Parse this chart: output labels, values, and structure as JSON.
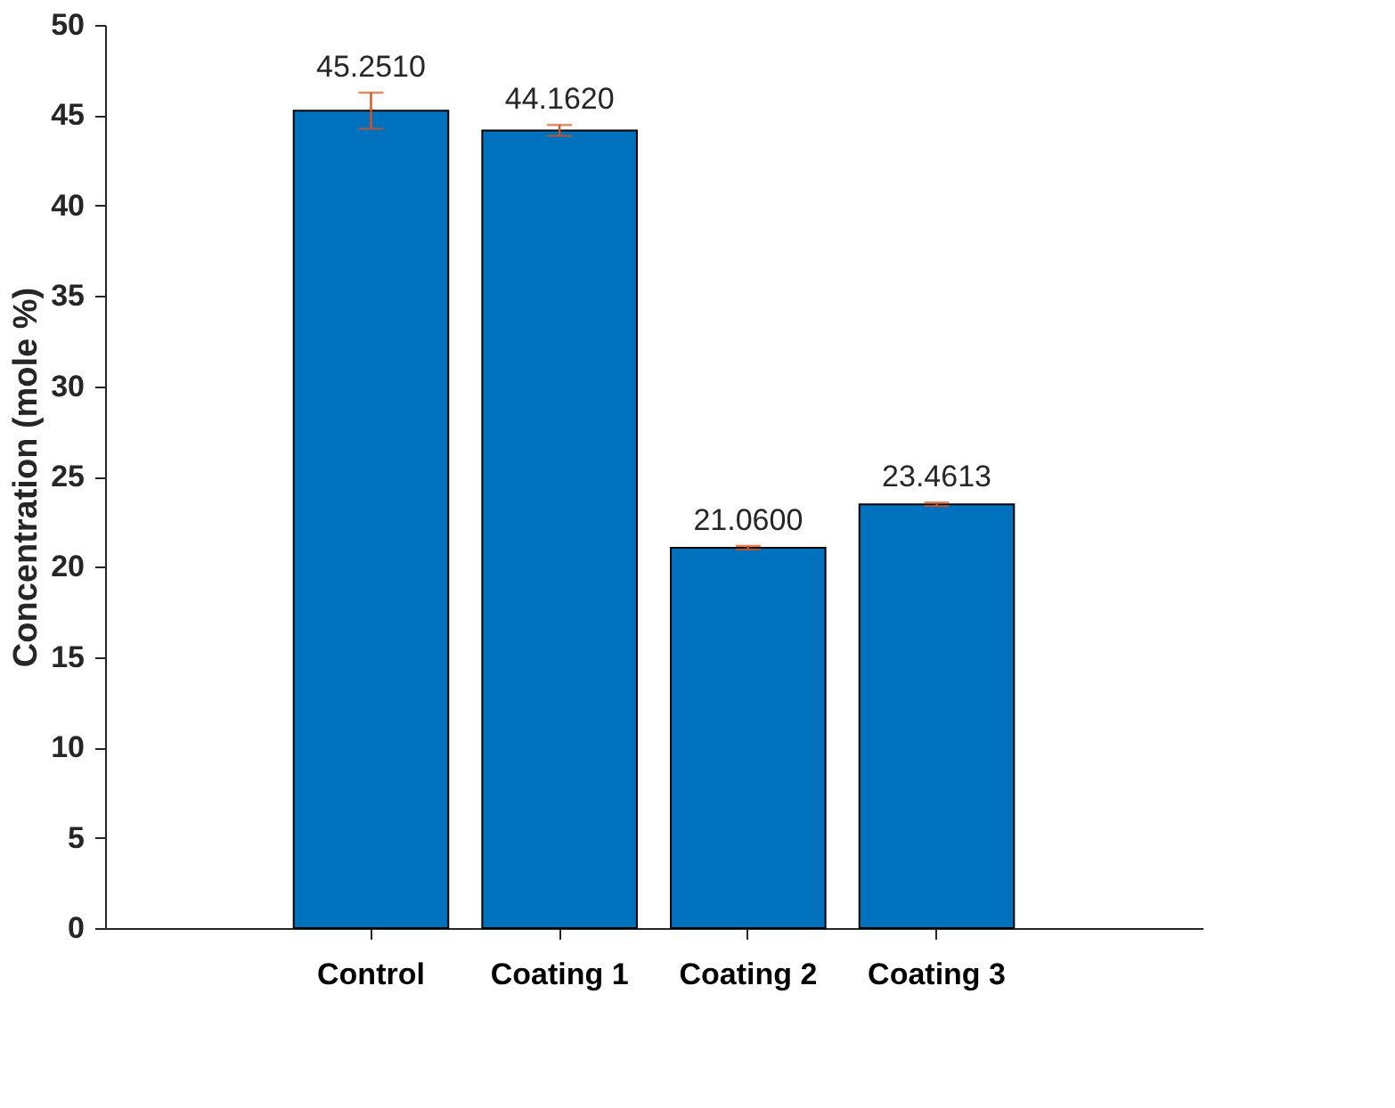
{
  "chart_data": {
    "type": "bar",
    "ylabel": "Concentration (mole %)",
    "categories": [
      "Control",
      "Coating 1",
      "Coating 2",
      "Coating 3"
    ],
    "values": [
      45.251,
      44.162,
      21.06,
      23.4613
    ],
    "value_labels": [
      "45.2510",
      "44.1620",
      "21.0600",
      "23.4613"
    ],
    "errors": [
      1.0,
      0.3,
      0.1,
      0.1
    ],
    "color": "#0072bd",
    "ylim": [
      0,
      50
    ],
    "yticks": [
      0,
      5,
      10,
      15,
      20,
      25,
      30,
      35,
      40,
      45,
      50
    ],
    "grid": false
  }
}
